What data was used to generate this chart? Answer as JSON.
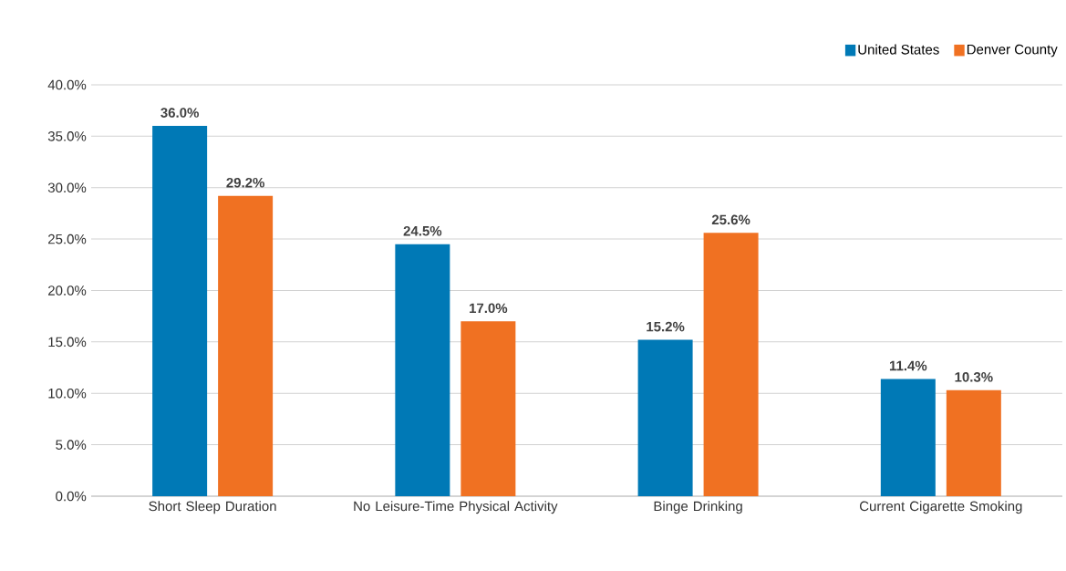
{
  "chart_data": {
    "type": "bar",
    "categories": [
      "Short Sleep Duration",
      "No Leisure-Time Physical Activity",
      "Binge Drinking",
      "Current Cigarette Smoking"
    ],
    "series": [
      {
        "name": "United States",
        "color": "#0079b6",
        "values": [
          36.0,
          24.5,
          15.2,
          11.4
        ],
        "value_labels": [
          "36.0%",
          "24.5%",
          "15.2%",
          "11.4%"
        ]
      },
      {
        "name": "Denver County",
        "color": "#f07122",
        "values": [
          29.2,
          17.0,
          25.6,
          10.3
        ],
        "value_labels": [
          "29.2%",
          "17.0%",
          "25.6%",
          "10.3%"
        ]
      }
    ],
    "ylim": [
      0,
      40
    ],
    "yticks": [
      {
        "value": 0,
        "label": "0.0%"
      },
      {
        "value": 5,
        "label": "5.0%"
      },
      {
        "value": 10,
        "label": "10.0%"
      },
      {
        "value": 15,
        "label": "15.0%"
      },
      {
        "value": 20,
        "label": "20.0%"
      },
      {
        "value": 25,
        "label": "25.0%"
      },
      {
        "value": 30,
        "label": "30.0%"
      },
      {
        "value": 35,
        "label": "35.0%"
      },
      {
        "value": 40,
        "label": "40.0%"
      }
    ],
    "grid": "y",
    "legend": "top right"
  }
}
